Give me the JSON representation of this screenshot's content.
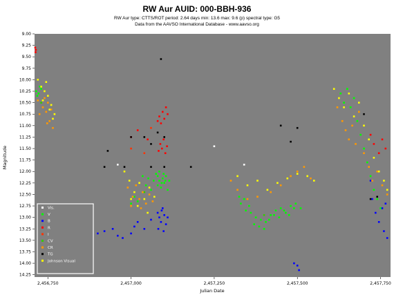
{
  "chart_data": {
    "type": "scatter",
    "title": "RW Aur   AUID: 000-BBH-936",
    "subtitle1": "RW Aur  type: CTTS/ROT  period: 2.64 days  min: 13.6  max: 9.6 (p)  spectral type: G5",
    "subtitle2": "Data from the AAVSO International Database - www.aavso.org",
    "xlabel": "Julian Date",
    "ylabel": "Magnitude",
    "xlim": [
      2456710,
      2457780
    ],
    "ylim": [
      9.0,
      14.3
    ],
    "y_inverted": true,
    "grid": false,
    "legend_position": "bottom-left",
    "x_ticks": [
      {
        "value": 2456750,
        "label": "2,456,750"
      },
      {
        "value": 2457000,
        "label": "2,457,000"
      },
      {
        "value": 2457250,
        "label": "2,457,250"
      },
      {
        "value": 2457500,
        "label": "2,457,500"
      },
      {
        "value": 2457750,
        "label": "2,457,750"
      }
    ],
    "y_ticks": [
      {
        "value": 9.0,
        "label": "9.00"
      },
      {
        "value": 9.25,
        "label": "9.25"
      },
      {
        "value": 9.5,
        "label": "9.50"
      },
      {
        "value": 9.75,
        "label": "9.75"
      },
      {
        "value": 10.0,
        "label": "10.00"
      },
      {
        "value": 10.25,
        "label": "10.25"
      },
      {
        "value": 10.5,
        "label": "10.50"
      },
      {
        "value": 10.75,
        "label": "10.75"
      },
      {
        "value": 11.0,
        "label": "11.00"
      },
      {
        "value": 11.25,
        "label": "11.25"
      },
      {
        "value": 11.5,
        "label": "11.50"
      },
      {
        "value": 11.75,
        "label": "11.75"
      },
      {
        "value": 12.0,
        "label": "12.00"
      },
      {
        "value": 12.25,
        "label": "12.25"
      },
      {
        "value": 12.5,
        "label": "12.50"
      },
      {
        "value": 12.75,
        "label": "12.75"
      },
      {
        "value": 13.0,
        "label": "13.00"
      },
      {
        "value": 13.25,
        "label": "13.25"
      },
      {
        "value": 13.5,
        "label": "13.50"
      },
      {
        "value": 13.75,
        "label": "13.75"
      },
      {
        "value": 14.0,
        "label": "14.00"
      },
      {
        "value": 14.25,
        "label": "14.25"
      }
    ],
    "series": [
      {
        "name": "Vis.",
        "color": "#ffffff",
        "points": [
          [
            2456960,
            11.85
          ],
          [
            2457250,
            11.45
          ],
          [
            2457340,
            11.85
          ]
        ]
      },
      {
        "name": "V",
        "color": "#00ff00",
        "points": [
          [
            2456715,
            10.25
          ],
          [
            2456722,
            10.3
          ],
          [
            2456730,
            10.2
          ],
          [
            2456718,
            10.35
          ],
          [
            2456726,
            10.15
          ],
          [
            2457035,
            12.1
          ],
          [
            2457045,
            12.3
          ],
          [
            2457052,
            12.15
          ],
          [
            2457060,
            12.4
          ],
          [
            2457068,
            12.2
          ],
          [
            2457075,
            12.05
          ],
          [
            2457080,
            12.3
          ],
          [
            2457085,
            12.2
          ],
          [
            2457090,
            12.35
          ],
          [
            2457095,
            12.15
          ],
          [
            2457100,
            12.25
          ],
          [
            2457105,
            12.1
          ],
          [
            2457110,
            12.4
          ],
          [
            2457115,
            12.2
          ],
          [
            2457010,
            12.55
          ],
          [
            2457020,
            12.65
          ],
          [
            2457000,
            12.7
          ],
          [
            2457080,
            12.1
          ],
          [
            2457085,
            12.0
          ],
          [
            2457092,
            12.25
          ],
          [
            2457098,
            12.05
          ],
          [
            2457103,
            12.2
          ],
          [
            2457330,
            12.7
          ],
          [
            2457345,
            12.85
          ],
          [
            2457360,
            12.9
          ],
          [
            2457375,
            13.0
          ],
          [
            2457390,
            13.05
          ],
          [
            2457405,
            13.1
          ],
          [
            2457420,
            12.95
          ],
          [
            2457435,
            12.85
          ],
          [
            2457450,
            12.8
          ],
          [
            2457465,
            12.9
          ],
          [
            2457480,
            12.75
          ],
          [
            2457495,
            12.7
          ],
          [
            2457510,
            12.8
          ],
          [
            2457370,
            13.15
          ],
          [
            2457385,
            13.2
          ],
          [
            2457400,
            13.25
          ],
          [
            2457415,
            13.05
          ],
          [
            2457430,
            12.95
          ],
          [
            2457445,
            13.0
          ],
          [
            2457460,
            12.85
          ],
          [
            2457475,
            12.95
          ],
          [
            2457490,
            12.8
          ],
          [
            2457355,
            12.75
          ],
          [
            2457340,
            12.6
          ],
          [
            2457325,
            12.55
          ],
          [
            2457630,
            10.3
          ],
          [
            2457640,
            10.5
          ],
          [
            2457650,
            10.2
          ],
          [
            2457660,
            10.6
          ],
          [
            2457670,
            10.4
          ],
          [
            2457680,
            10.9
          ],
          [
            2457690,
            11.2
          ],
          [
            2457700,
            11.5
          ],
          [
            2457710,
            11.8
          ],
          [
            2457720,
            12.1
          ],
          [
            2457730,
            12.4
          ],
          [
            2457740,
            12.6
          ],
          [
            2457750,
            12.8
          ]
        ]
      },
      {
        "name": "B",
        "color": "#0000ff",
        "points": [
          [
            2456900,
            13.35
          ],
          [
            2456920,
            13.3
          ],
          [
            2456945,
            13.25
          ],
          [
            2456960,
            13.4
          ],
          [
            2456975,
            13.45
          ],
          [
            2457000,
            13.35
          ],
          [
            2457010,
            13.2
          ],
          [
            2457020,
            13.1
          ],
          [
            2457040,
            13.25
          ],
          [
            2457060,
            13.05
          ],
          [
            2457080,
            12.9
          ],
          [
            2457085,
            13.0
          ],
          [
            2457090,
            13.1
          ],
          [
            2457095,
            12.8
          ],
          [
            2457100,
            12.95
          ],
          [
            2457105,
            13.15
          ],
          [
            2457110,
            13.0
          ],
          [
            2457082,
            13.25
          ],
          [
            2457092,
            12.85
          ],
          [
            2457098,
            13.3
          ],
          [
            2457500,
            14.05
          ],
          [
            2457505,
            14.15
          ],
          [
            2457490,
            14.0
          ],
          [
            2457720,
            12.2
          ],
          [
            2457725,
            12.6
          ],
          [
            2457735,
            12.9
          ],
          [
            2457745,
            13.1
          ],
          [
            2457755,
            12.8
          ],
          [
            2457760,
            13.3
          ],
          [
            2457765,
            12.7
          ],
          [
            2457770,
            13.45
          ]
        ]
      },
      {
        "name": "R",
        "color": "#ff0000",
        "points": [
          [
            2456712,
            9.3
          ],
          [
            2456714,
            9.35
          ],
          [
            2456713,
            9.4
          ],
          [
            2457080,
            10.9
          ],
          [
            2457085,
            10.8
          ],
          [
            2457090,
            10.95
          ],
          [
            2457095,
            10.7
          ],
          [
            2457100,
            10.85
          ],
          [
            2457105,
            10.6
          ],
          [
            2457110,
            10.75
          ],
          [
            2457088,
            11.4
          ],
          [
            2457093,
            11.5
          ],
          [
            2457098,
            11.3
          ],
          [
            2457103,
            11.6
          ],
          [
            2457108,
            11.45
          ],
          [
            2457083,
            11.55
          ],
          [
            2457000,
            11.25
          ],
          [
            2457020,
            11.1
          ],
          [
            2457050,
            11.3
          ],
          [
            2457720,
            11.2
          ],
          [
            2457730,
            11.4
          ],
          [
            2457745,
            11.6
          ],
          [
            2457755,
            11.3
          ],
          [
            2457765,
            11.5
          ]
        ]
      },
      {
        "name": "I",
        "color": "#ff3300",
        "points": [
          [
            2457000,
            11.5
          ],
          [
            2457040,
            11.6
          ],
          [
            2457060,
            11.05
          ]
        ]
      },
      {
        "name": "CV",
        "color": "#33cc00",
        "points": [
          [
            2456730,
            10.5
          ],
          [
            2457040,
            12.45
          ],
          [
            2457400,
            12.95
          ]
        ]
      },
      {
        "name": "CR",
        "color": "#ff9900",
        "points": [
          [
            2456720,
            10.45
          ],
          [
            2456735,
            10.6
          ],
          [
            2456740,
            10.4
          ],
          [
            2456745,
            10.7
          ],
          [
            2456750,
            10.5
          ],
          [
            2456755,
            10.9
          ],
          [
            2456760,
            10.65
          ],
          [
            2456765,
            11.05
          ],
          [
            2456725,
            10.75
          ],
          [
            2456748,
            10.95
          ],
          [
            2456990,
            12.35
          ],
          [
            2457005,
            12.55
          ],
          [
            2457015,
            12.3
          ],
          [
            2457025,
            12.6
          ],
          [
            2457035,
            12.45
          ],
          [
            2457045,
            12.7
          ],
          [
            2457055,
            12.5
          ],
          [
            2457065,
            12.65
          ],
          [
            2457000,
            12.75
          ],
          [
            2457030,
            12.8
          ],
          [
            2457300,
            12.2
          ],
          [
            2457320,
            12.4
          ],
          [
            2457350,
            12.6
          ],
          [
            2457380,
            12.55
          ],
          [
            2457420,
            12.45
          ],
          [
            2457450,
            12.3
          ],
          [
            2457480,
            12.1
          ],
          [
            2457500,
            12.0
          ],
          [
            2457520,
            11.9
          ],
          [
            2457540,
            12.15
          ],
          [
            2457620,
            10.6
          ],
          [
            2457635,
            10.9
          ],
          [
            2457645,
            11.1
          ],
          [
            2457655,
            11.3
          ],
          [
            2457665,
            11.0
          ],
          [
            2457675,
            11.4
          ],
          [
            2457685,
            10.7
          ],
          [
            2457700,
            11.6
          ],
          [
            2457715,
            11.9
          ],
          [
            2457725,
            12.2
          ],
          [
            2457740,
            12.0
          ],
          [
            2457755,
            12.3
          ],
          [
            2457770,
            12.5
          ]
        ]
      },
      {
        "name": "TG",
        "color": "#000000",
        "points": [
          [
            2456920,
            11.9
          ],
          [
            2456980,
            11.9
          ],
          [
            2457060,
            11.9
          ],
          [
            2457100,
            11.9
          ],
          [
            2457180,
            11.9
          ],
          [
            2457000,
            11.25
          ],
          [
            2457040,
            11.25
          ],
          [
            2457100,
            11.25
          ],
          [
            2457060,
            11.4
          ],
          [
            2457080,
            11.15
          ],
          [
            2457090,
            9.55
          ],
          [
            2457450,
            11.0
          ],
          [
            2457500,
            11.05
          ],
          [
            2457480,
            11.35
          ],
          [
            2457700,
            10.75
          ],
          [
            2457740,
            12.55
          ],
          [
            2457720,
            12.6
          ],
          [
            2456930,
            11.55
          ]
        ]
      },
      {
        "name": "Johnson Visual",
        "color": "#ffff00",
        "points": [
          [
            2456720,
            10.0
          ],
          [
            2456730,
            10.15
          ],
          [
            2456740,
            10.25
          ],
          [
            2456750,
            10.35
          ],
          [
            2456760,
            10.55
          ],
          [
            2456770,
            10.75
          ],
          [
            2456735,
            10.45
          ],
          [
            2456755,
            10.65
          ],
          [
            2456765,
            10.85
          ],
          [
            2456745,
            10.05
          ],
          [
            2456980,
            12.0
          ],
          [
            2456995,
            12.2
          ],
          [
            2457010,
            12.45
          ],
          [
            2457025,
            12.25
          ],
          [
            2457040,
            12.6
          ],
          [
            2457055,
            12.35
          ],
          [
            2457070,
            12.55
          ],
          [
            2457000,
            12.6
          ],
          [
            2457020,
            12.75
          ],
          [
            2457050,
            12.9
          ],
          [
            2457320,
            12.1
          ],
          [
            2457350,
            12.3
          ],
          [
            2457380,
            12.2
          ],
          [
            2457410,
            12.4
          ],
          [
            2457440,
            12.25
          ],
          [
            2457470,
            12.15
          ],
          [
            2457500,
            12.05
          ],
          [
            2457530,
            12.1
          ],
          [
            2457550,
            12.2
          ],
          [
            2457610,
            10.2
          ],
          [
            2457625,
            10.4
          ],
          [
            2457640,
            10.6
          ],
          [
            2457655,
            10.3
          ],
          [
            2457670,
            10.8
          ],
          [
            2457685,
            10.5
          ],
          [
            2457700,
            11.0
          ],
          [
            2457715,
            11.3
          ],
          [
            2457730,
            11.7
          ],
          [
            2457745,
            12.0
          ],
          [
            2457760,
            12.2
          ],
          [
            2457770,
            12.4
          ]
        ]
      }
    ]
  }
}
